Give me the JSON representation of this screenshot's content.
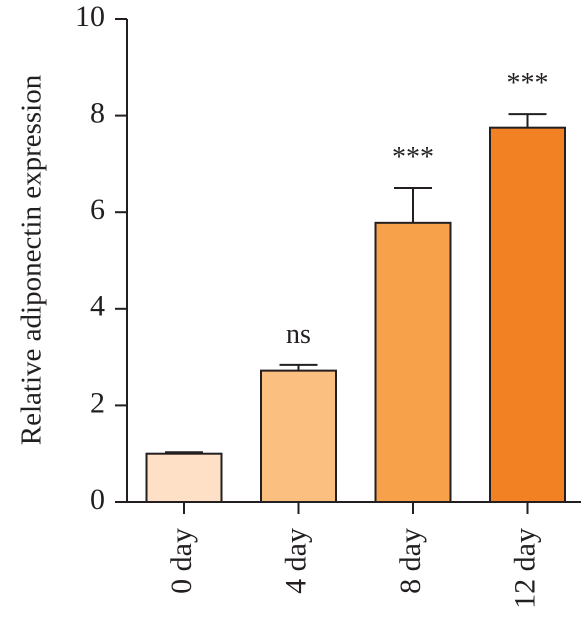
{
  "chart_data": {
    "type": "bar",
    "title": "",
    "xlabel": "",
    "ylabel": "Relative adiponectin expression",
    "ylim": [
      0,
      10
    ],
    "yticks": [
      0,
      2,
      4,
      6,
      8,
      10
    ],
    "grid": false,
    "legend": "none",
    "categories": [
      "0 day",
      "4 day",
      "8 day",
      "12 day"
    ],
    "values": [
      1.0,
      2.72,
      5.78,
      7.75
    ],
    "errors": [
      0.03,
      0.12,
      0.72,
      0.28
    ],
    "annotations": [
      "",
      "ns",
      "***",
      "***"
    ],
    "colors": [
      "#fde0c5",
      "#fbbf7f",
      "#f7a14a",
      "#f28124"
    ]
  }
}
